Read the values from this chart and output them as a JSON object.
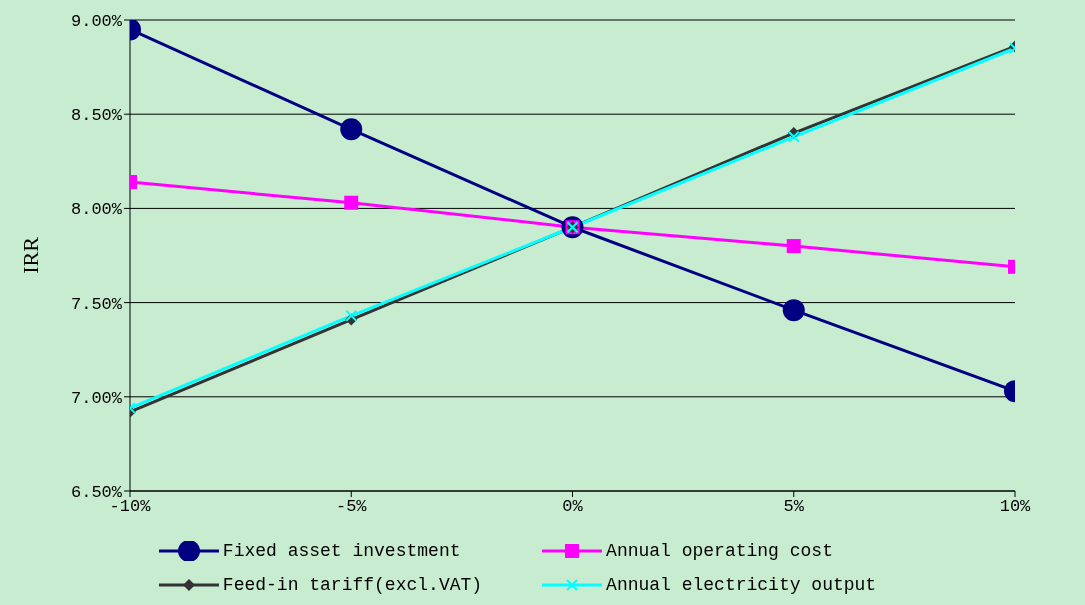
{
  "chart_data": {
    "type": "line",
    "ylabel": "IRR",
    "x": [
      -10,
      -5,
      0,
      5,
      10
    ],
    "xlim": [
      -10,
      10
    ],
    "xticks": [
      {
        "value": -10,
        "label": "-10%"
      },
      {
        "value": -5,
        "label": "-5%"
      },
      {
        "value": 0,
        "label": "0%"
      },
      {
        "value": 5,
        "label": "5%"
      },
      {
        "value": 10,
        "label": "10%"
      }
    ],
    "ylim": [
      6.5,
      9
    ],
    "yticks": [
      {
        "value": 6.5,
        "label": "6.50%"
      },
      {
        "value": 7,
        "label": "7.00%"
      },
      {
        "value": 7.5,
        "label": "7.50%"
      },
      {
        "value": 8,
        "label": "8.00%"
      },
      {
        "value": 8.5,
        "label": "8.50%"
      },
      {
        "value": 9,
        "label": "9.00%"
      }
    ],
    "grid": "y",
    "legend": "bottom",
    "line_style": "solid",
    "series": [
      {
        "name": "Fixed asset investment",
        "color": "#000080",
        "marker": "circle",
        "values": [
          8.95,
          8.42,
          7.9,
          7.46,
          7.03
        ]
      },
      {
        "name": "Annual operating cost",
        "color": "#ff00ff",
        "marker": "square",
        "values": [
          8.14,
          8.03,
          7.9,
          7.8,
          7.69
        ]
      },
      {
        "name": "Feed-in tariff(excl.VAT)",
        "color": "#333333",
        "marker": "diamond",
        "values": [
          6.92,
          7.41,
          7.9,
          8.4,
          8.86
        ]
      },
      {
        "name": "Annual electricity output",
        "color": "#00ffff",
        "marker": "cross",
        "values": [
          6.94,
          7.43,
          7.9,
          8.38,
          8.85
        ]
      }
    ]
  }
}
